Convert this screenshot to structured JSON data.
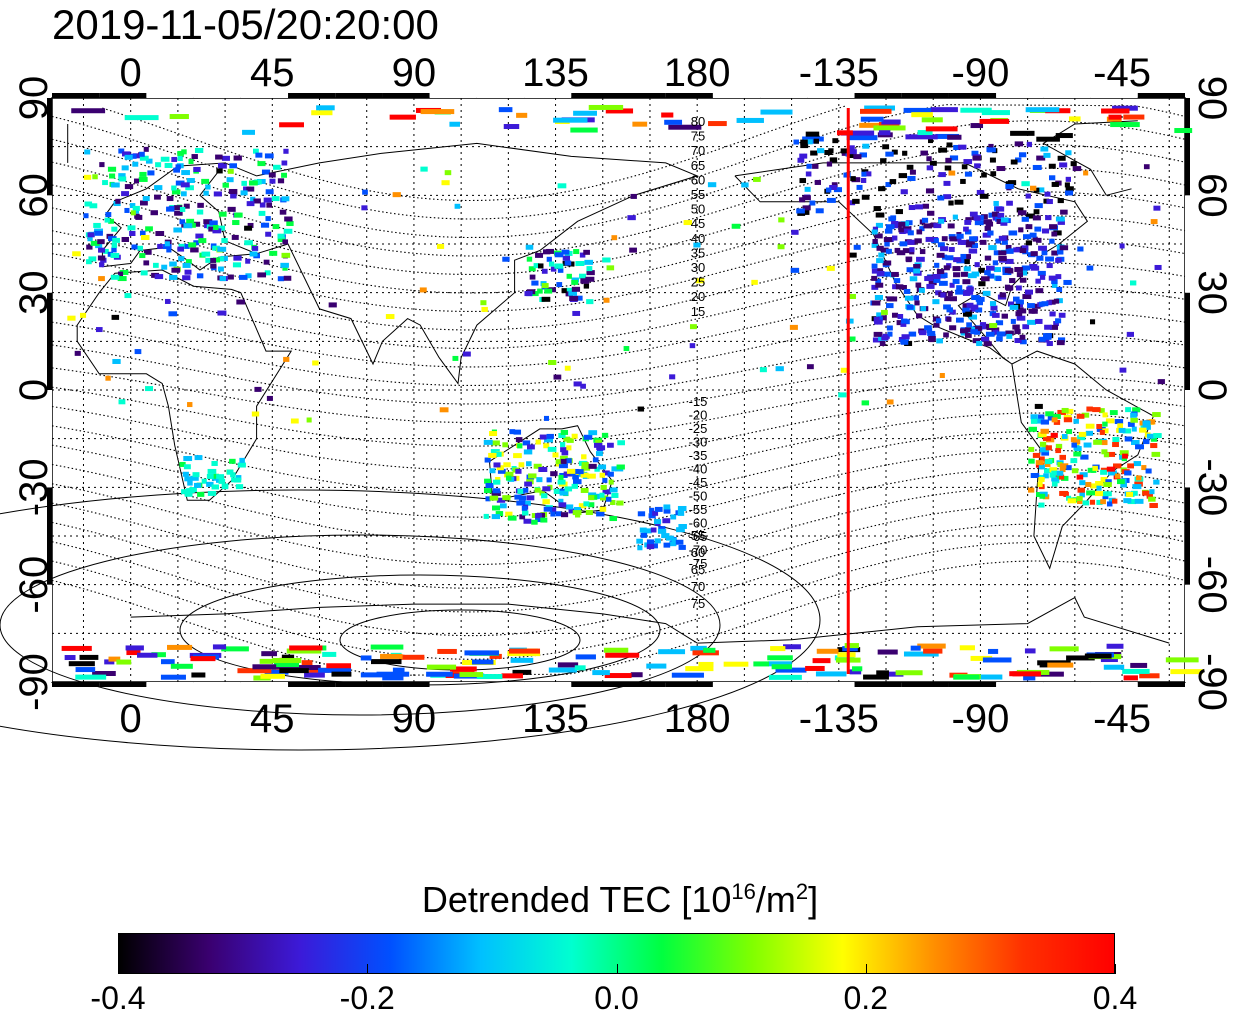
{
  "timestamp": "2019-11-05/20:20:00",
  "map": {
    "projection": "equirectangular, longitude centered 150E",
    "lon_range": [
      -25,
      335
    ],
    "lat_range": [
      -90,
      90
    ],
    "lon_tick_labels": [
      "0",
      "45",
      "90",
      "135",
      "180",
      "-135",
      "-90",
      "-45"
    ],
    "lat_tick_labels": [
      "90",
      "60",
      "30",
      "0",
      "-30",
      "-60",
      "-90"
    ],
    "marker_line": {
      "color": "#ff0000",
      "lon": -132
    },
    "contour_labels_north": [
      "80",
      "75",
      "70",
      "65",
      "60",
      "55",
      "50",
      "45",
      "40",
      "35",
      "30",
      "25",
      "20",
      "15"
    ],
    "contour_labels_south": [
      "-15",
      "-20",
      "-25",
      "-30",
      "-35",
      "-40",
      "-45",
      "-50",
      "-55",
      "-60",
      "-65",
      "-70",
      "-75"
    ],
    "contour_labels_south_near_pole": [
      "55",
      "60",
      "65",
      "70",
      "75"
    ]
  },
  "colorbar": {
    "title_main": "Detrended TEC  [10",
    "title_exp1": "16",
    "title_mid": "/m",
    "title_exp2": "2",
    "title_end": "]",
    "ticks": [
      "-0.4",
      "-0.2",
      "0.0",
      "0.2",
      "0.4"
    ],
    "colors": [
      "#000000",
      "#3a0070",
      "#3c1ad8",
      "#0050ff",
      "#00c0ff",
      "#00ffd0",
      "#00ff40",
      "#80ff00",
      "#ffff00",
      "#ff9000",
      "#ff3000",
      "#ff0000"
    ]
  }
}
